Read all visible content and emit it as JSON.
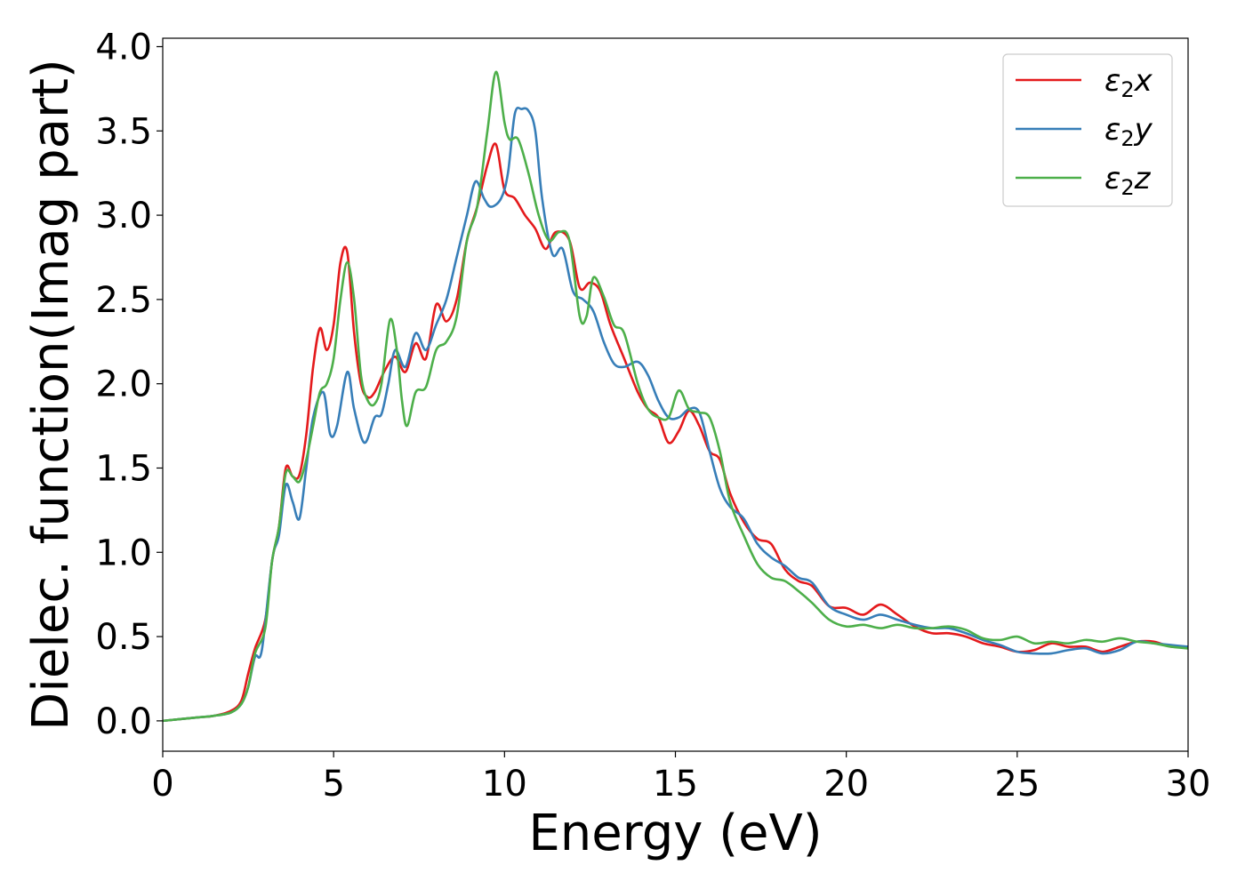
{
  "chart_data": {
    "type": "line",
    "title": "",
    "xlabel": "Energy (eV)",
    "ylabel": "Dielec. function(Imag part)",
    "xlim": [
      0,
      30
    ],
    "ylim": [
      -0.18,
      4.05
    ],
    "xticks": [
      0,
      5,
      10,
      15,
      20,
      25,
      30
    ],
    "xtick_labels": [
      "0",
      "5",
      "10",
      "15",
      "20",
      "25",
      "30"
    ],
    "yticks": [
      0.0,
      0.5,
      1.0,
      1.5,
      2.0,
      2.5,
      3.0,
      3.5,
      4.0
    ],
    "ytick_labels": [
      "0.0",
      "0.5",
      "1.0",
      "1.5",
      "2.0",
      "2.5",
      "3.0",
      "3.5",
      "4.0"
    ],
    "grid": false,
    "legend_position": "top-right",
    "series": [
      {
        "name": "ε2x",
        "legend_base": "ε",
        "legend_sub": "2",
        "legend_suffix": "x",
        "color": "#e41a1c",
        "x": [
          0,
          1,
          1.5,
          2.0,
          2.3,
          2.5,
          2.7,
          3.0,
          3.2,
          3.4,
          3.6,
          3.8,
          4.0,
          4.2,
          4.4,
          4.6,
          4.8,
          5.0,
          5.2,
          5.4,
          5.6,
          5.8,
          6.0,
          6.2,
          6.5,
          6.8,
          7.1,
          7.4,
          7.7,
          8.0,
          8.3,
          8.6,
          8.9,
          9.2,
          9.5,
          9.75,
          10.0,
          10.3,
          10.6,
          10.9,
          11.2,
          11.5,
          11.9,
          12.2,
          12.5,
          12.8,
          13.1,
          13.5,
          13.9,
          14.2,
          14.5,
          14.8,
          15.1,
          15.4,
          15.7,
          16.0,
          16.3,
          16.6,
          17.0,
          17.4,
          17.8,
          18.2,
          18.6,
          19.0,
          19.5,
          20.0,
          20.5,
          21.0,
          21.5,
          22.0,
          22.5,
          23.0,
          23.5,
          24.0,
          24.5,
          25.0,
          25.5,
          26.0,
          26.5,
          27.0,
          27.5,
          28.0,
          28.5,
          29.0,
          29.5,
          30.0
        ],
        "y": [
          0.0,
          0.02,
          0.03,
          0.06,
          0.12,
          0.28,
          0.43,
          0.6,
          0.95,
          1.15,
          1.5,
          1.45,
          1.46,
          1.7,
          2.1,
          2.33,
          2.2,
          2.35,
          2.72,
          2.78,
          2.3,
          2.0,
          1.92,
          1.95,
          2.08,
          2.16,
          2.07,
          2.24,
          2.15,
          2.47,
          2.37,
          2.5,
          2.85,
          3.05,
          3.3,
          3.42,
          3.15,
          3.1,
          3.0,
          2.92,
          2.8,
          2.9,
          2.85,
          2.57,
          2.6,
          2.55,
          2.35,
          2.15,
          1.95,
          1.85,
          1.8,
          1.65,
          1.72,
          1.84,
          1.75,
          1.6,
          1.55,
          1.35,
          1.18,
          1.08,
          1.05,
          0.9,
          0.83,
          0.8,
          0.68,
          0.67,
          0.63,
          0.69,
          0.63,
          0.56,
          0.52,
          0.52,
          0.5,
          0.46,
          0.44,
          0.41,
          0.42,
          0.46,
          0.44,
          0.44,
          0.41,
          0.44,
          0.47,
          0.47,
          0.44,
          0.44
        ]
      },
      {
        "name": "ε2y",
        "legend_base": "ε",
        "legend_sub": "2",
        "legend_suffix": "y",
        "color": "#377eb8",
        "x": [
          0,
          1,
          1.5,
          2.0,
          2.3,
          2.5,
          2.7,
          2.9,
          3.2,
          3.4,
          3.6,
          3.8,
          4.0,
          4.2,
          4.4,
          4.7,
          4.9,
          5.1,
          5.4,
          5.6,
          5.9,
          6.2,
          6.4,
          6.6,
          6.8,
          7.1,
          7.4,
          7.7,
          8.0,
          8.3,
          8.6,
          8.9,
          9.15,
          9.4,
          9.6,
          9.9,
          10.1,
          10.3,
          10.5,
          10.7,
          10.9,
          11.1,
          11.4,
          11.7,
          12.0,
          12.3,
          12.6,
          12.9,
          13.2,
          13.5,
          13.9,
          14.2,
          14.5,
          14.8,
          15.1,
          15.4,
          15.7,
          16.0,
          16.3,
          16.6,
          17.0,
          17.4,
          17.8,
          18.2,
          18.6,
          19.0,
          19.5,
          20.0,
          20.5,
          21.0,
          21.5,
          22.0,
          22.5,
          23.0,
          23.5,
          24.0,
          24.5,
          25.0,
          25.5,
          26.0,
          26.5,
          27.0,
          27.5,
          28.0,
          28.5,
          29.0,
          29.5,
          30.0
        ],
        "y": [
          0.0,
          0.02,
          0.03,
          0.05,
          0.1,
          0.2,
          0.38,
          0.42,
          0.95,
          1.1,
          1.4,
          1.3,
          1.2,
          1.5,
          1.8,
          1.95,
          1.7,
          1.75,
          2.07,
          1.85,
          1.65,
          1.8,
          1.82,
          2.0,
          2.2,
          2.1,
          2.3,
          2.2,
          2.35,
          2.5,
          2.75,
          3.0,
          3.2,
          3.1,
          3.05,
          3.1,
          3.25,
          3.6,
          3.63,
          3.62,
          3.5,
          3.1,
          2.77,
          2.8,
          2.55,
          2.5,
          2.43,
          2.25,
          2.12,
          2.1,
          2.13,
          2.05,
          1.9,
          1.8,
          1.8,
          1.85,
          1.83,
          1.6,
          1.38,
          1.27,
          1.2,
          1.05,
          0.97,
          0.92,
          0.85,
          0.82,
          0.68,
          0.63,
          0.6,
          0.63,
          0.6,
          0.57,
          0.55,
          0.55,
          0.52,
          0.48,
          0.45,
          0.41,
          0.4,
          0.4,
          0.42,
          0.43,
          0.4,
          0.42,
          0.47,
          0.46,
          0.45,
          0.44
        ]
      },
      {
        "name": "ε2z",
        "legend_base": "ε",
        "legend_sub": "2",
        "legend_suffix": "z",
        "color": "#4daf4a",
        "x": [
          0,
          1,
          1.5,
          2.0,
          2.3,
          2.5,
          2.7,
          3.0,
          3.2,
          3.4,
          3.6,
          3.8,
          4.0,
          4.2,
          4.4,
          4.6,
          4.8,
          5.0,
          5.2,
          5.4,
          5.6,
          5.8,
          6.0,
          6.2,
          6.4,
          6.65,
          6.85,
          7.0,
          7.15,
          7.4,
          7.7,
          8.0,
          8.3,
          8.6,
          8.9,
          9.2,
          9.5,
          9.75,
          10.0,
          10.15,
          10.4,
          10.7,
          11.0,
          11.3,
          11.6,
          11.9,
          12.2,
          12.4,
          12.6,
          12.9,
          13.2,
          13.5,
          13.9,
          14.2,
          14.5,
          14.8,
          15.1,
          15.4,
          15.7,
          16.0,
          16.3,
          16.6,
          17.0,
          17.4,
          17.8,
          18.2,
          18.6,
          19.0,
          19.5,
          20.0,
          20.5,
          21.0,
          21.5,
          22.0,
          22.5,
          23.0,
          23.5,
          24.0,
          24.5,
          25.0,
          25.5,
          26.0,
          26.5,
          27.0,
          27.5,
          28.0,
          28.5,
          29.0,
          29.5,
          30.0
        ],
        "y": [
          0.0,
          0.02,
          0.03,
          0.05,
          0.1,
          0.2,
          0.4,
          0.55,
          0.95,
          1.15,
          1.47,
          1.45,
          1.42,
          1.55,
          1.75,
          1.95,
          2.0,
          2.15,
          2.5,
          2.72,
          2.5,
          2.05,
          1.9,
          1.88,
          2.0,
          2.38,
          2.2,
          1.9,
          1.75,
          1.95,
          1.98,
          2.2,
          2.25,
          2.4,
          2.85,
          3.05,
          3.5,
          3.85,
          3.55,
          3.45,
          3.45,
          3.25,
          3.0,
          2.85,
          2.9,
          2.85,
          2.4,
          2.4,
          2.63,
          2.52,
          2.35,
          2.3,
          2.0,
          1.85,
          1.8,
          1.8,
          1.96,
          1.85,
          1.83,
          1.8,
          1.6,
          1.3,
          1.1,
          0.93,
          0.85,
          0.83,
          0.77,
          0.7,
          0.6,
          0.56,
          0.57,
          0.55,
          0.57,
          0.55,
          0.55,
          0.56,
          0.54,
          0.49,
          0.48,
          0.5,
          0.46,
          0.47,
          0.46,
          0.48,
          0.47,
          0.49,
          0.47,
          0.46,
          0.44,
          0.43
        ]
      }
    ]
  }
}
